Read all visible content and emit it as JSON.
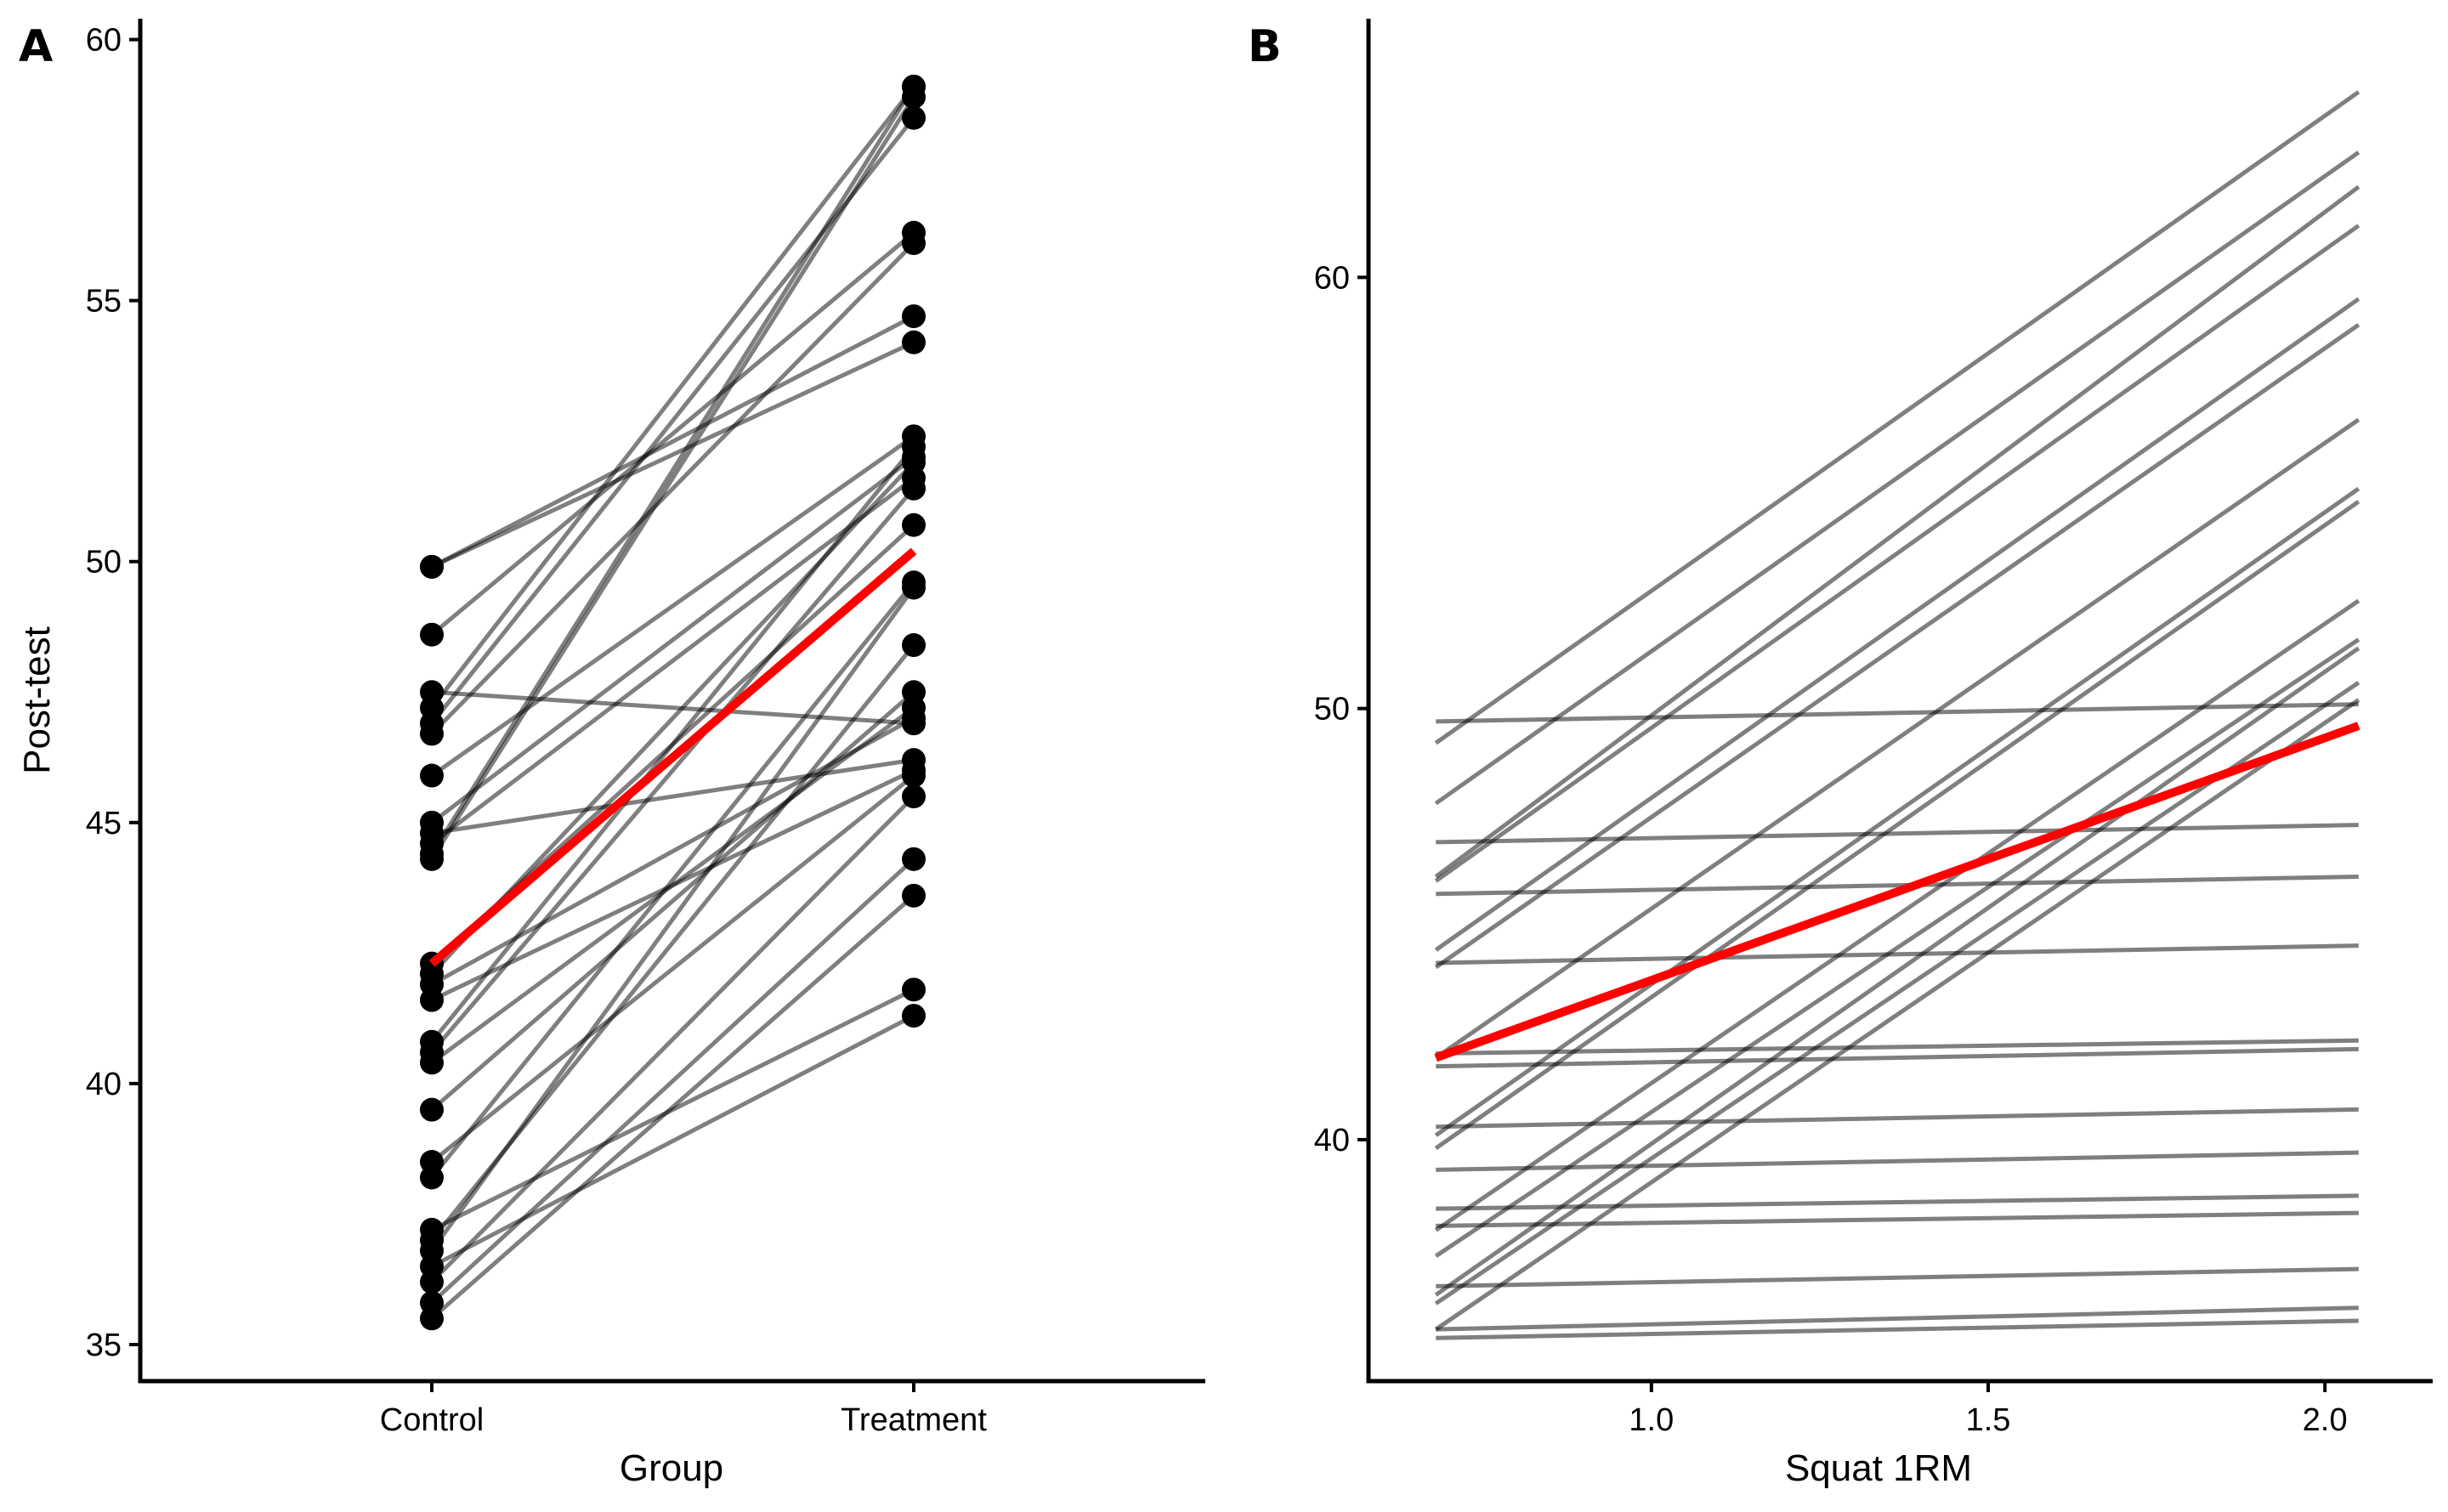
{
  "chart_data": [
    {
      "type": "line",
      "panel_label": "A",
      "xlabel": "Group",
      "ylabel": "Post-test",
      "categories": [
        "Control",
        "Treatment"
      ],
      "ylim": [
        34.3,
        60.4
      ],
      "yticks": [
        35,
        40,
        45,
        50,
        55,
        60
      ],
      "ytick_labels": [
        "35",
        "40",
        "45",
        "50",
        "55",
        "60"
      ],
      "grid": false,
      "series": [
        {
          "values": [
            49.9,
            54.2
          ]
        },
        {
          "values": [
            49.9,
            54.7
          ]
        },
        {
          "values": [
            48.6,
            56.3
          ]
        },
        {
          "values": [
            47.5,
            46.9
          ]
        },
        {
          "values": [
            47.2,
            59.1
          ]
        },
        {
          "values": [
            46.9,
            58.5
          ]
        },
        {
          "values": [
            46.7,
            56.1
          ]
        },
        {
          "values": [
            45.9,
            52.4
          ]
        },
        {
          "values": [
            45.0,
            52.0
          ]
        },
        {
          "values": [
            44.8,
            46.2
          ]
        },
        {
          "values": [
            44.6,
            51.6
          ]
        },
        {
          "values": [
            44.4,
            59.1
          ]
        },
        {
          "values": [
            44.3,
            58.9
          ]
        },
        {
          "values": [
            42.3,
            50.7
          ]
        },
        {
          "values": [
            42.1,
            51.9
          ]
        },
        {
          "values": [
            41.9,
            47.0
          ]
        },
        {
          "values": [
            40.8,
            52.2
          ]
        },
        {
          "values": [
            40.6,
            51.4
          ]
        },
        {
          "values": [
            40.4,
            47.2
          ]
        },
        {
          "values": [
            39.5,
            47.5
          ]
        },
        {
          "values": [
            38.5,
            45.9
          ]
        },
        {
          "values": [
            38.2,
            49.6
          ]
        },
        {
          "values": [
            37.2,
            41.8
          ]
        },
        {
          "values": [
            37.0,
            48.4
          ]
        },
        {
          "values": [
            36.8,
            49.5
          ]
        },
        {
          "values": [
            36.2,
            45.5
          ]
        },
        {
          "values": [
            35.8,
            44.3
          ]
        },
        {
          "values": [
            35.5,
            43.6
          ]
        },
        {
          "values": [
            36.5,
            41.3
          ]
        },
        {
          "values": [
            41.6,
            46.0
          ]
        }
      ],
      "fit_line": {
        "values": [
          42.3,
          50.2
        ],
        "color": "#ff0000"
      },
      "colors": {
        "lines": "#808080",
        "points": "#000000",
        "fit": "#ff0000"
      }
    },
    {
      "type": "line",
      "panel_label": "B",
      "xlabel": "Squat 1RM",
      "ylabel": "",
      "xlim": [
        0.58,
        2.16
      ],
      "ylim": [
        34.4,
        66.0
      ],
      "xticks": [
        1.0,
        1.5,
        2.0
      ],
      "xtick_labels": [
        "1.0",
        "1.5",
        "2.0"
      ],
      "yticks": [
        40,
        50,
        60
      ],
      "ytick_labels": [
        "40",
        "50",
        "60"
      ],
      "grid": false,
      "x": [
        0.68,
        2.05
      ],
      "series": [
        {
          "values": [
            49.2,
            64.3
          ]
        },
        {
          "values": [
            49.7,
            50.1
          ]
        },
        {
          "values": [
            47.8,
            62.9
          ]
        },
        {
          "values": [
            46.9,
            47.3
          ]
        },
        {
          "values": [
            46.1,
            62.1
          ]
        },
        {
          "values": [
            46.0,
            61.2
          ]
        },
        {
          "values": [
            45.7,
            46.1
          ]
        },
        {
          "values": [
            44.4,
            59.5
          ]
        },
        {
          "values": [
            44.1,
            44.5
          ]
        },
        {
          "values": [
            44.0,
            58.9
          ]
        },
        {
          "values": [
            42.0,
            42.3
          ]
        },
        {
          "values": [
            41.9,
            56.7
          ]
        },
        {
          "values": [
            41.7,
            42.1
          ]
        },
        {
          "values": [
            40.3,
            40.7
          ]
        },
        {
          "values": [
            40.1,
            55.1
          ]
        },
        {
          "values": [
            39.8,
            54.8
          ]
        },
        {
          "values": [
            39.3,
            39.7
          ]
        },
        {
          "values": [
            38.4,
            38.7
          ]
        },
        {
          "values": [
            38.0,
            38.3
          ]
        },
        {
          "values": [
            37.9,
            52.5
          ]
        },
        {
          "values": [
            37.3,
            51.6
          ]
        },
        {
          "values": [
            36.6,
            37.0
          ]
        },
        {
          "values": [
            36.4,
            51.4
          ]
        },
        {
          "values": [
            36.2,
            50.6
          ]
        },
        {
          "values": [
            35.6,
            36.1
          ]
        },
        {
          "values": [
            35.6,
            50.2
          ]
        },
        {
          "values": [
            35.4,
            35.8
          ]
        }
      ],
      "fit_line": {
        "values": [
          41.9,
          49.6
        ],
        "color": "#ff0000"
      },
      "colors": {
        "lines": "#808080",
        "fit": "#ff0000"
      }
    }
  ]
}
